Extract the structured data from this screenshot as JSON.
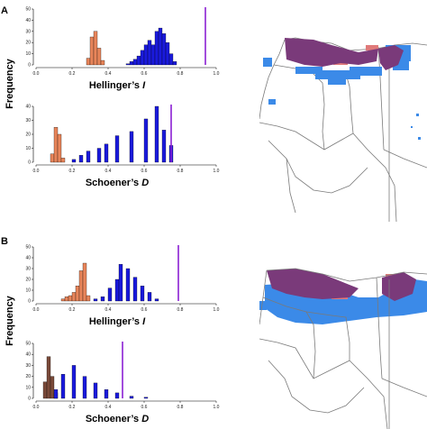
{
  "panels": [
    {
      "label": "A",
      "ylabel": "Frequency"
    },
    {
      "label": "B",
      "ylabel": "Frequency"
    }
  ],
  "colors": {
    "observed_line": "#8b1fd4",
    "null_a": "#e8855a",
    "null_b": "#1a1adc",
    "map_overlap": "#7a3a7a",
    "map_species_a": "#e07a7a",
    "map_species_b": "#3b8ae8",
    "map_borders": "#7a7a7a"
  },
  "chart_data": [
    {
      "id": "A-hellinger",
      "type": "bar",
      "xlabel_main": "Hellinger’s ",
      "xlabel_stat": "I",
      "xlim": [
        0,
        1
      ],
      "ylim": [
        0,
        50
      ],
      "xticks": [
        "0.0",
        "0.2",
        "0.4",
        "0.6",
        "0.8",
        "1.0"
      ],
      "yticks": [
        "0",
        "10",
        "20",
        "30",
        "40",
        "50"
      ],
      "bin_width": 0.02,
      "observed": 0.94,
      "series": [
        {
          "color": "#e8855a",
          "bins": [
            [
              0.28,
              6
            ],
            [
              0.3,
              25
            ],
            [
              0.32,
              30
            ],
            [
              0.34,
              15
            ],
            [
              0.36,
              4
            ]
          ]
        },
        {
          "color": "#1a1adc",
          "bins": [
            [
              0.5,
              1
            ],
            [
              0.52,
              3
            ],
            [
              0.54,
              5
            ],
            [
              0.56,
              8
            ],
            [
              0.58,
              13
            ],
            [
              0.6,
              18
            ],
            [
              0.62,
              22
            ],
            [
              0.64,
              18
            ],
            [
              0.66,
              30
            ],
            [
              0.68,
              33
            ],
            [
              0.7,
              28
            ],
            [
              0.72,
              20
            ],
            [
              0.74,
              10
            ],
            [
              0.76,
              3
            ]
          ]
        }
      ]
    },
    {
      "id": "A-schoener",
      "type": "bar",
      "xlabel_main": "Schoener’s ",
      "xlabel_stat": "D",
      "xlim": [
        0,
        1
      ],
      "ylim": [
        0,
        40
      ],
      "xticks": [
        "0.0",
        "0.2",
        "0.4",
        "0.6",
        "0.8",
        "1.0"
      ],
      "yticks": [
        "0",
        "10",
        "20",
        "30",
        "40"
      ],
      "bin_width": 0.02,
      "observed": 0.75,
      "series": [
        {
          "color": "#e8855a",
          "bins": [
            [
              0.08,
              6
            ],
            [
              0.1,
              25
            ],
            [
              0.12,
              20
            ],
            [
              0.14,
              3
            ]
          ]
        },
        {
          "color": "#1a1adc",
          "bins": [
            [
              0.2,
              2
            ],
            [
              0.24,
              5
            ],
            [
              0.28,
              8
            ],
            [
              0.34,
              10
            ],
            [
              0.38,
              13
            ],
            [
              0.44,
              19
            ],
            [
              0.52,
              22
            ],
            [
              0.6,
              31
            ],
            [
              0.66,
              40
            ],
            [
              0.7,
              23
            ],
            [
              0.74,
              12
            ]
          ]
        }
      ]
    },
    {
      "id": "B-hellinger",
      "type": "bar",
      "xlabel_main": "Hellinger’s ",
      "xlabel_stat": "I",
      "xlim": [
        0,
        1
      ],
      "ylim": [
        0,
        50
      ],
      "xticks": [
        "0.0",
        "0.2",
        "0.4",
        "0.6",
        "0.8",
        "1.0"
      ],
      "yticks": [
        "0",
        "10",
        "20",
        "30",
        "40",
        "50"
      ],
      "bin_width": 0.02,
      "observed": 0.79,
      "series": [
        {
          "color": "#e8855a",
          "bins": [
            [
              0.14,
              2
            ],
            [
              0.16,
              4
            ],
            [
              0.18,
              5
            ],
            [
              0.2,
              8
            ],
            [
              0.22,
              14
            ],
            [
              0.24,
              28
            ],
            [
              0.26,
              35
            ],
            [
              0.28,
              5
            ]
          ]
        },
        {
          "color": "#1a1adc",
          "bins": [
            [
              0.32,
              2
            ],
            [
              0.36,
              4
            ],
            [
              0.4,
              12
            ],
            [
              0.44,
              20
            ],
            [
              0.46,
              34
            ],
            [
              0.5,
              30
            ],
            [
              0.54,
              22
            ],
            [
              0.58,
              14
            ],
            [
              0.62,
              8
            ],
            [
              0.66,
              2
            ]
          ]
        }
      ]
    },
    {
      "id": "B-schoener",
      "type": "bar",
      "xlabel_main": "Schoener’s ",
      "xlabel_stat": "D",
      "xlim": [
        0,
        1
      ],
      "ylim": [
        0,
        50
      ],
      "xticks": [
        "0.0",
        "0.2",
        "0.4",
        "0.6",
        "0.8",
        "1.0"
      ],
      "yticks": [
        "0",
        "10",
        "20",
        "30",
        "40",
        "50"
      ],
      "bin_width": 0.02,
      "observed": 0.48,
      "series": [
        {
          "color": "#7a4a3a",
          "bins": [
            [
              0.04,
              15
            ],
            [
              0.06,
              38
            ],
            [
              0.08,
              20
            ],
            [
              0.1,
              5
            ]
          ]
        },
        {
          "color": "#1a1adc",
          "bins": [
            [
              0.1,
              8
            ],
            [
              0.14,
              22
            ],
            [
              0.2,
              30
            ],
            [
              0.26,
              20
            ],
            [
              0.32,
              14
            ],
            [
              0.38,
              8
            ],
            [
              0.44,
              5
            ],
            [
              0.52,
              2
            ],
            [
              0.6,
              1
            ]
          ]
        }
      ]
    }
  ]
}
